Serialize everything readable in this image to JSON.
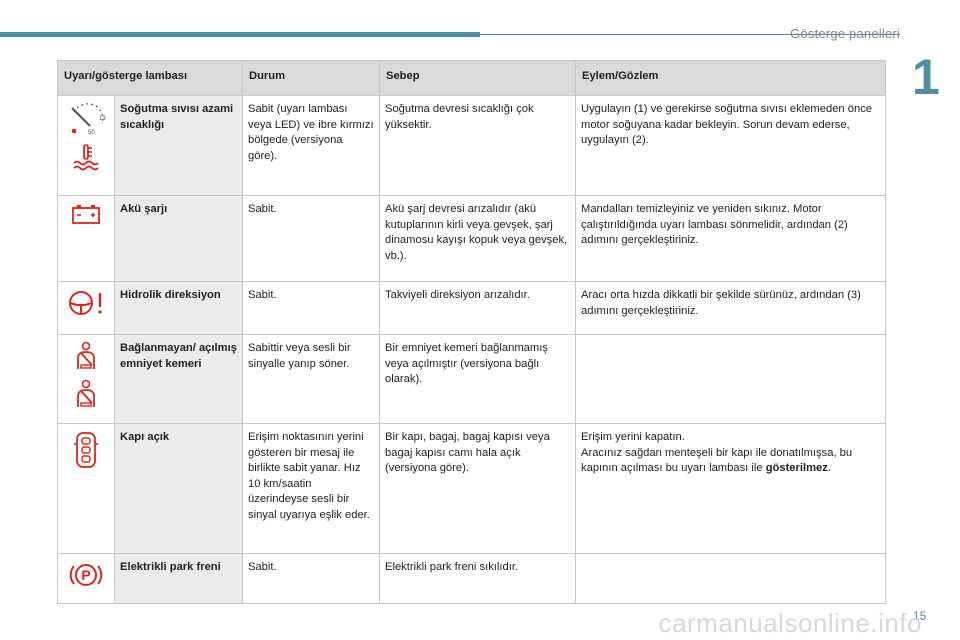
{
  "header": {
    "section_title": "Gösterge panelleri",
    "chapter": "1"
  },
  "footer": {
    "page_number": "15",
    "watermark": "carmanualsonline.info"
  },
  "table": {
    "columns": [
      "Uyarı/gösterge lambası",
      "Durum",
      "Sebep",
      "Eylem/Gözlem"
    ],
    "rows": [
      {
        "icons": [
          "coolant-gauge-icon",
          "coolant-temperature-icon"
        ],
        "name": "Soğutma sıvısı azami sıcaklığı",
        "state": "Sabit (uyarı lambası veya LED) ve ibre kırmızı bölgede (versiyona göre).",
        "cause": "Soğutma devresi sıcaklığı çok yüksektir.",
        "action": "Uygulayın (1) ve gerekirse soğutma sıvısı eklemeden önce motor soğuyana kadar bekleyin. Sorun devam ederse, uygulayın (2)."
      },
      {
        "icons": [
          "battery-icon"
        ],
        "name": "Akü şarjı",
        "state": "Sabit.",
        "cause": "Akü şarj devresi arızalıdır (akü kutuplarının kirli veya gevşek, şarj dinamosu kayışı kopuk veya gevşek, vb.).",
        "action": "Mandalları temizleyiniz ve yeniden sıkınız. Motor çalıştırıldığında uyarı lambası sönmelidir, ardından (2) adımını gerçekleştiriniz."
      },
      {
        "icons": [
          "steering-wheel-warning-icon"
        ],
        "name": "Hidrolik direksiyon",
        "state": "Sabit.",
        "cause": "Takviyeli direksiyon arızalıdır.",
        "action": "Aracı orta hızda dikkatli bir şekilde sürünüz, ardından (3) adımını gerçekleştiriniz."
      },
      {
        "icons": [
          "seatbelt-icon",
          "seatbelt-passenger-icon"
        ],
        "name": "Bağlanmayan/ açılmış emniyet kemeri",
        "state": "Sabittir veya sesli bir sinyalle yanıp söner.",
        "cause": "Bir emniyet kemeri bağlanmamış veya açılmıştır (versiyona bağlı olarak).",
        "action": ""
      },
      {
        "icons": [
          "door-open-key-icon"
        ],
        "name": "Kapı açık",
        "state": "Erişim noktasının yerini gösteren bir mesaj ile birlikte sabit yanar. Hız 10 km/saatin üzerindeyse sesli bir sinyal uyarıya eşlik eder.",
        "cause": "Bir kapı, bagaj, bagaj kapısı veya bagaj kapısı camı hala açık (versiyona göre).",
        "action_line1": "Erişim yerini kapatın.",
        "action_line2": "Aracınız sağdan menteşeli bir kapı ile donatılmışsa, bu kapının açılması bu uyarı lambası ile",
        "action_bold": "gösterilmez",
        "action_end": "."
      },
      {
        "icons": [
          "electric-parking-brake-icon"
        ],
        "name": "Elektrikli park freni",
        "state": "Sabit.",
        "cause": "Elektrikli park freni sıkılıdır.",
        "action": ""
      }
    ]
  },
  "colors": {
    "accent": "#4e8fa3",
    "warning_red": "#e2231a",
    "header_bg": "#d9d9d9",
    "name_bg": "#ebebeb"
  }
}
